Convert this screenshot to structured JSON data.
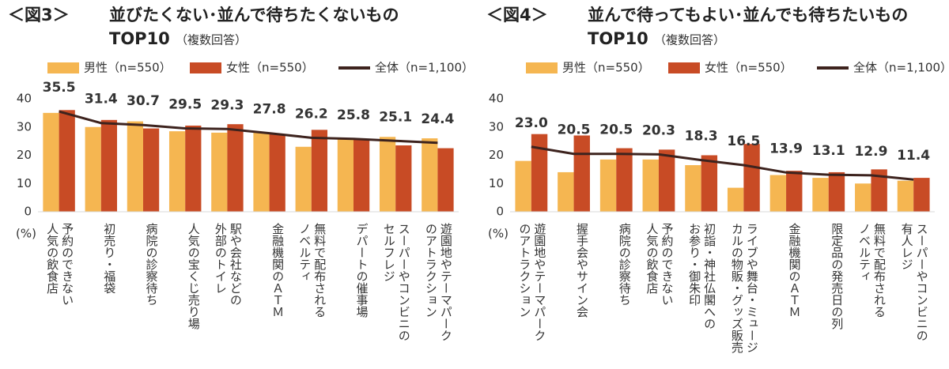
{
  "chart_data": [
    {
      "type": "bar",
      "figure_label": "＜図3＞",
      "title": "並びたくない･並んで待ちたくないもの",
      "subtitle": "TOP10",
      "note": "（複数回答）",
      "y_unit": "(%)",
      "categories": [
        [
          "予約のできない",
          "人気の飲食店"
        ],
        [
          "初売り・福袋"
        ],
        [
          "病院の診察待ち"
        ],
        [
          "人気の宝くじ売り場"
        ],
        [
          "駅や会社などの",
          "外部のトイレ"
        ],
        [
          "金融機関のＡＴＭ"
        ],
        [
          "無料で配布される",
          "ノベルティ"
        ],
        [
          "デパートの催事場"
        ],
        [
          "スーパーやコンビニの",
          "セルフレジ"
        ],
        [
          "遊園地やテーマパーク",
          "のアトラクション"
        ]
      ],
      "series": [
        {
          "name": "男性（n=550）",
          "type": "bar",
          "color": "#f5b651",
          "values": [
            35,
            30,
            32,
            28.5,
            28,
            28,
            23,
            26,
            26.5,
            26
          ]
        },
        {
          "name": "女性（n=550）",
          "type": "bar",
          "color": "#c84b25",
          "values": [
            36,
            32.5,
            29.5,
            30.5,
            31,
            27.5,
            29,
            25.5,
            23.5,
            22.5
          ]
        },
        {
          "name": "全体（n=1,100）",
          "type": "line",
          "color": "#3d231e",
          "values": [
            35.5,
            31.4,
            30.7,
            29.5,
            29.3,
            27.8,
            26.2,
            25.8,
            25.1,
            24.4
          ],
          "value_labels": [
            "35.5",
            "31.4",
            "30.7",
            "29.5",
            "29.3",
            "27.8",
            "26.2",
            "25.8",
            "25.1",
            "24.4"
          ]
        }
      ],
      "ylim": [
        0,
        40
      ],
      "yticks": [
        0,
        10,
        20,
        30,
        40
      ],
      "grid": false
    },
    {
      "type": "bar",
      "figure_label": "＜図4＞",
      "title": "並んで待ってもよい･並んでも待ちたいもの",
      "subtitle": "TOP10",
      "note": "（複数回答）",
      "y_unit": "(%)",
      "categories": [
        [
          "遊園地やテーマパーク",
          "のアトラクション"
        ],
        [
          "握手会やサイン会"
        ],
        [
          "病院の診察待ち"
        ],
        [
          "予約のできない",
          "人気の飲食店"
        ],
        [
          "初詣・神社仏閣への",
          "お参り・御朱印"
        ],
        [
          "ライブや舞台・ミュージ",
          "カルの物販・グッズ販売"
        ],
        [
          "金融機関のＡＴＭ"
        ],
        [
          "限定品の発売日の列"
        ],
        [
          "無料で配布される",
          "ノベルティ"
        ],
        [
          "スーパーやコンビニの",
          "有人レジ"
        ]
      ],
      "series": [
        {
          "name": "男性（n=550）",
          "type": "bar",
          "color": "#f5b651",
          "values": [
            18,
            14,
            18.5,
            18.5,
            16.5,
            8.5,
            13,
            12,
            10,
            11
          ]
        },
        {
          "name": "女性（n=550）",
          "type": "bar",
          "color": "#c84b25",
          "values": [
            27.5,
            27,
            22.5,
            22,
            20,
            24,
            14.5,
            14,
            15,
            12
          ]
        },
        {
          "name": "全体（n=1,100）",
          "type": "line",
          "color": "#3d231e",
          "values": [
            23.0,
            20.5,
            20.5,
            20.3,
            18.3,
            16.5,
            13.9,
            13.1,
            12.9,
            11.4
          ],
          "value_labels": [
            "23.0",
            "20.5",
            "20.5",
            "20.3",
            "18.3",
            "16.5",
            "13.9",
            "13.1",
            "12.9",
            "11.4"
          ]
        }
      ],
      "ylim": [
        0,
        40
      ],
      "yticks": [
        0,
        10,
        20,
        30,
        40
      ],
      "grid": false
    }
  ]
}
